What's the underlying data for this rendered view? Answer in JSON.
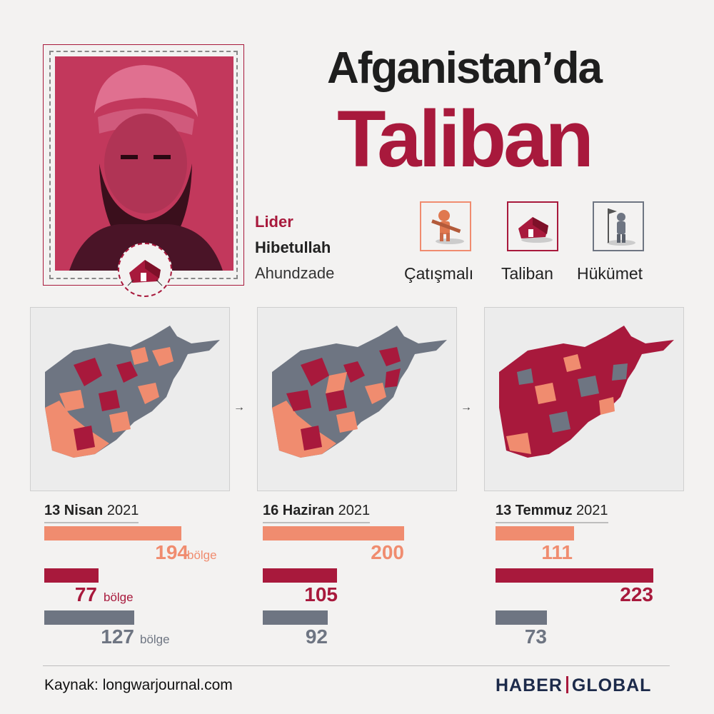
{
  "title": {
    "line1": "Afganistan’da",
    "line2": "Taliban"
  },
  "leader": {
    "role": "Lider",
    "first_name": "Hibetullah",
    "last_name": "Ahundzade"
  },
  "legend": [
    {
      "label": "Çatışmalı",
      "color": "#f08c6f",
      "icon": "soldier-rifle-icon"
    },
    {
      "label": "Taliban",
      "color": "#a8193c",
      "icon": "tent-icon"
    },
    {
      "label": "Hükümet",
      "color": "#6e7582",
      "icon": "flag-soldier-icon"
    }
  ],
  "colors": {
    "contested": "#f08c6f",
    "taliban": "#a8193c",
    "government": "#6e7582",
    "map_bg": "#ececec"
  },
  "unit_label": "bölge",
  "snapshots": [
    {
      "day": "13 Nisan",
      "year": "2021",
      "contested": "194",
      "taliban": "77",
      "government": "127"
    },
    {
      "day": "16 Haziran",
      "year": "2021",
      "contested": "200",
      "taliban": "105",
      "government": "92"
    },
    {
      "day": "13 Temmuz",
      "year": "2021",
      "contested": "111",
      "taliban": "223",
      "government": "73"
    }
  ],
  "chart_data": {
    "type": "bar",
    "categories": [
      "13 Nisan 2021",
      "16 Haziran 2021",
      "13 Temmuz 2021"
    ],
    "series": [
      {
        "name": "Çatışmalı",
        "values": [
          194,
          200,
          111
        ]
      },
      {
        "name": "Taliban",
        "values": [
          77,
          105,
          223
        ]
      },
      {
        "name": "Hükümet",
        "values": [
          127,
          92,
          73
        ]
      }
    ],
    "unit": "bölge",
    "legend_position": "top-right"
  },
  "footer": {
    "source": "Kaynak: longwarjournal.com",
    "brand_left": "HABER",
    "brand_right": "GLOBAL"
  }
}
